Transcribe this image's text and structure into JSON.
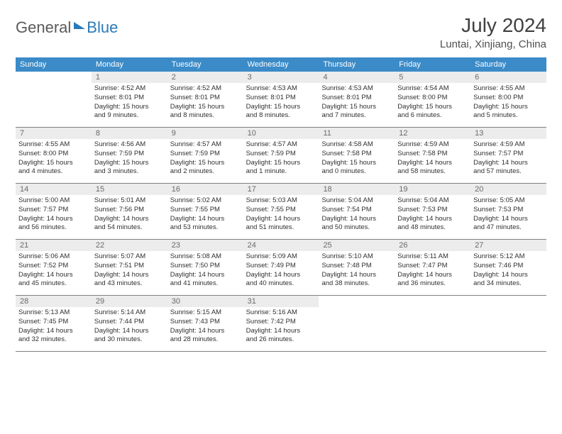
{
  "brand": {
    "word1": "General",
    "word2": "Blue"
  },
  "title": "July 2024",
  "location": "Luntai, Xinjiang, China",
  "colors": {
    "header_bg": "#3b8bc8",
    "header_text": "#ffffff",
    "daynum_bg": "#ececec",
    "daynum_text": "#6a6a6a",
    "body_text": "#303030",
    "rule": "#808080",
    "logo_gray": "#5a5a5a",
    "logo_blue": "#2a7ab8",
    "page_bg": "#ffffff"
  },
  "day_names": [
    "Sunday",
    "Monday",
    "Tuesday",
    "Wednesday",
    "Thursday",
    "Friday",
    "Saturday"
  ],
  "weeks": [
    [
      null,
      {
        "n": "1",
        "sr": "Sunrise: 4:52 AM",
        "ss": "Sunset: 8:01 PM",
        "d1": "Daylight: 15 hours",
        "d2": "and 9 minutes."
      },
      {
        "n": "2",
        "sr": "Sunrise: 4:52 AM",
        "ss": "Sunset: 8:01 PM",
        "d1": "Daylight: 15 hours",
        "d2": "and 8 minutes."
      },
      {
        "n": "3",
        "sr": "Sunrise: 4:53 AM",
        "ss": "Sunset: 8:01 PM",
        "d1": "Daylight: 15 hours",
        "d2": "and 8 minutes."
      },
      {
        "n": "4",
        "sr": "Sunrise: 4:53 AM",
        "ss": "Sunset: 8:01 PM",
        "d1": "Daylight: 15 hours",
        "d2": "and 7 minutes."
      },
      {
        "n": "5",
        "sr": "Sunrise: 4:54 AM",
        "ss": "Sunset: 8:00 PM",
        "d1": "Daylight: 15 hours",
        "d2": "and 6 minutes."
      },
      {
        "n": "6",
        "sr": "Sunrise: 4:55 AM",
        "ss": "Sunset: 8:00 PM",
        "d1": "Daylight: 15 hours",
        "d2": "and 5 minutes."
      }
    ],
    [
      {
        "n": "7",
        "sr": "Sunrise: 4:55 AM",
        "ss": "Sunset: 8:00 PM",
        "d1": "Daylight: 15 hours",
        "d2": "and 4 minutes."
      },
      {
        "n": "8",
        "sr": "Sunrise: 4:56 AM",
        "ss": "Sunset: 7:59 PM",
        "d1": "Daylight: 15 hours",
        "d2": "and 3 minutes."
      },
      {
        "n": "9",
        "sr": "Sunrise: 4:57 AM",
        "ss": "Sunset: 7:59 PM",
        "d1": "Daylight: 15 hours",
        "d2": "and 2 minutes."
      },
      {
        "n": "10",
        "sr": "Sunrise: 4:57 AM",
        "ss": "Sunset: 7:59 PM",
        "d1": "Daylight: 15 hours",
        "d2": "and 1 minute."
      },
      {
        "n": "11",
        "sr": "Sunrise: 4:58 AM",
        "ss": "Sunset: 7:58 PM",
        "d1": "Daylight: 15 hours",
        "d2": "and 0 minutes."
      },
      {
        "n": "12",
        "sr": "Sunrise: 4:59 AM",
        "ss": "Sunset: 7:58 PM",
        "d1": "Daylight: 14 hours",
        "d2": "and 58 minutes."
      },
      {
        "n": "13",
        "sr": "Sunrise: 4:59 AM",
        "ss": "Sunset: 7:57 PM",
        "d1": "Daylight: 14 hours",
        "d2": "and 57 minutes."
      }
    ],
    [
      {
        "n": "14",
        "sr": "Sunrise: 5:00 AM",
        "ss": "Sunset: 7:57 PM",
        "d1": "Daylight: 14 hours",
        "d2": "and 56 minutes."
      },
      {
        "n": "15",
        "sr": "Sunrise: 5:01 AM",
        "ss": "Sunset: 7:56 PM",
        "d1": "Daylight: 14 hours",
        "d2": "and 54 minutes."
      },
      {
        "n": "16",
        "sr": "Sunrise: 5:02 AM",
        "ss": "Sunset: 7:55 PM",
        "d1": "Daylight: 14 hours",
        "d2": "and 53 minutes."
      },
      {
        "n": "17",
        "sr": "Sunrise: 5:03 AM",
        "ss": "Sunset: 7:55 PM",
        "d1": "Daylight: 14 hours",
        "d2": "and 51 minutes."
      },
      {
        "n": "18",
        "sr": "Sunrise: 5:04 AM",
        "ss": "Sunset: 7:54 PM",
        "d1": "Daylight: 14 hours",
        "d2": "and 50 minutes."
      },
      {
        "n": "19",
        "sr": "Sunrise: 5:04 AM",
        "ss": "Sunset: 7:53 PM",
        "d1": "Daylight: 14 hours",
        "d2": "and 48 minutes."
      },
      {
        "n": "20",
        "sr": "Sunrise: 5:05 AM",
        "ss": "Sunset: 7:53 PM",
        "d1": "Daylight: 14 hours",
        "d2": "and 47 minutes."
      }
    ],
    [
      {
        "n": "21",
        "sr": "Sunrise: 5:06 AM",
        "ss": "Sunset: 7:52 PM",
        "d1": "Daylight: 14 hours",
        "d2": "and 45 minutes."
      },
      {
        "n": "22",
        "sr": "Sunrise: 5:07 AM",
        "ss": "Sunset: 7:51 PM",
        "d1": "Daylight: 14 hours",
        "d2": "and 43 minutes."
      },
      {
        "n": "23",
        "sr": "Sunrise: 5:08 AM",
        "ss": "Sunset: 7:50 PM",
        "d1": "Daylight: 14 hours",
        "d2": "and 41 minutes."
      },
      {
        "n": "24",
        "sr": "Sunrise: 5:09 AM",
        "ss": "Sunset: 7:49 PM",
        "d1": "Daylight: 14 hours",
        "d2": "and 40 minutes."
      },
      {
        "n": "25",
        "sr": "Sunrise: 5:10 AM",
        "ss": "Sunset: 7:48 PM",
        "d1": "Daylight: 14 hours",
        "d2": "and 38 minutes."
      },
      {
        "n": "26",
        "sr": "Sunrise: 5:11 AM",
        "ss": "Sunset: 7:47 PM",
        "d1": "Daylight: 14 hours",
        "d2": "and 36 minutes."
      },
      {
        "n": "27",
        "sr": "Sunrise: 5:12 AM",
        "ss": "Sunset: 7:46 PM",
        "d1": "Daylight: 14 hours",
        "d2": "and 34 minutes."
      }
    ],
    [
      {
        "n": "28",
        "sr": "Sunrise: 5:13 AM",
        "ss": "Sunset: 7:45 PM",
        "d1": "Daylight: 14 hours",
        "d2": "and 32 minutes."
      },
      {
        "n": "29",
        "sr": "Sunrise: 5:14 AM",
        "ss": "Sunset: 7:44 PM",
        "d1": "Daylight: 14 hours",
        "d2": "and 30 minutes."
      },
      {
        "n": "30",
        "sr": "Sunrise: 5:15 AM",
        "ss": "Sunset: 7:43 PM",
        "d1": "Daylight: 14 hours",
        "d2": "and 28 minutes."
      },
      {
        "n": "31",
        "sr": "Sunrise: 5:16 AM",
        "ss": "Sunset: 7:42 PM",
        "d1": "Daylight: 14 hours",
        "d2": "and 26 minutes."
      },
      null,
      null,
      null
    ]
  ]
}
